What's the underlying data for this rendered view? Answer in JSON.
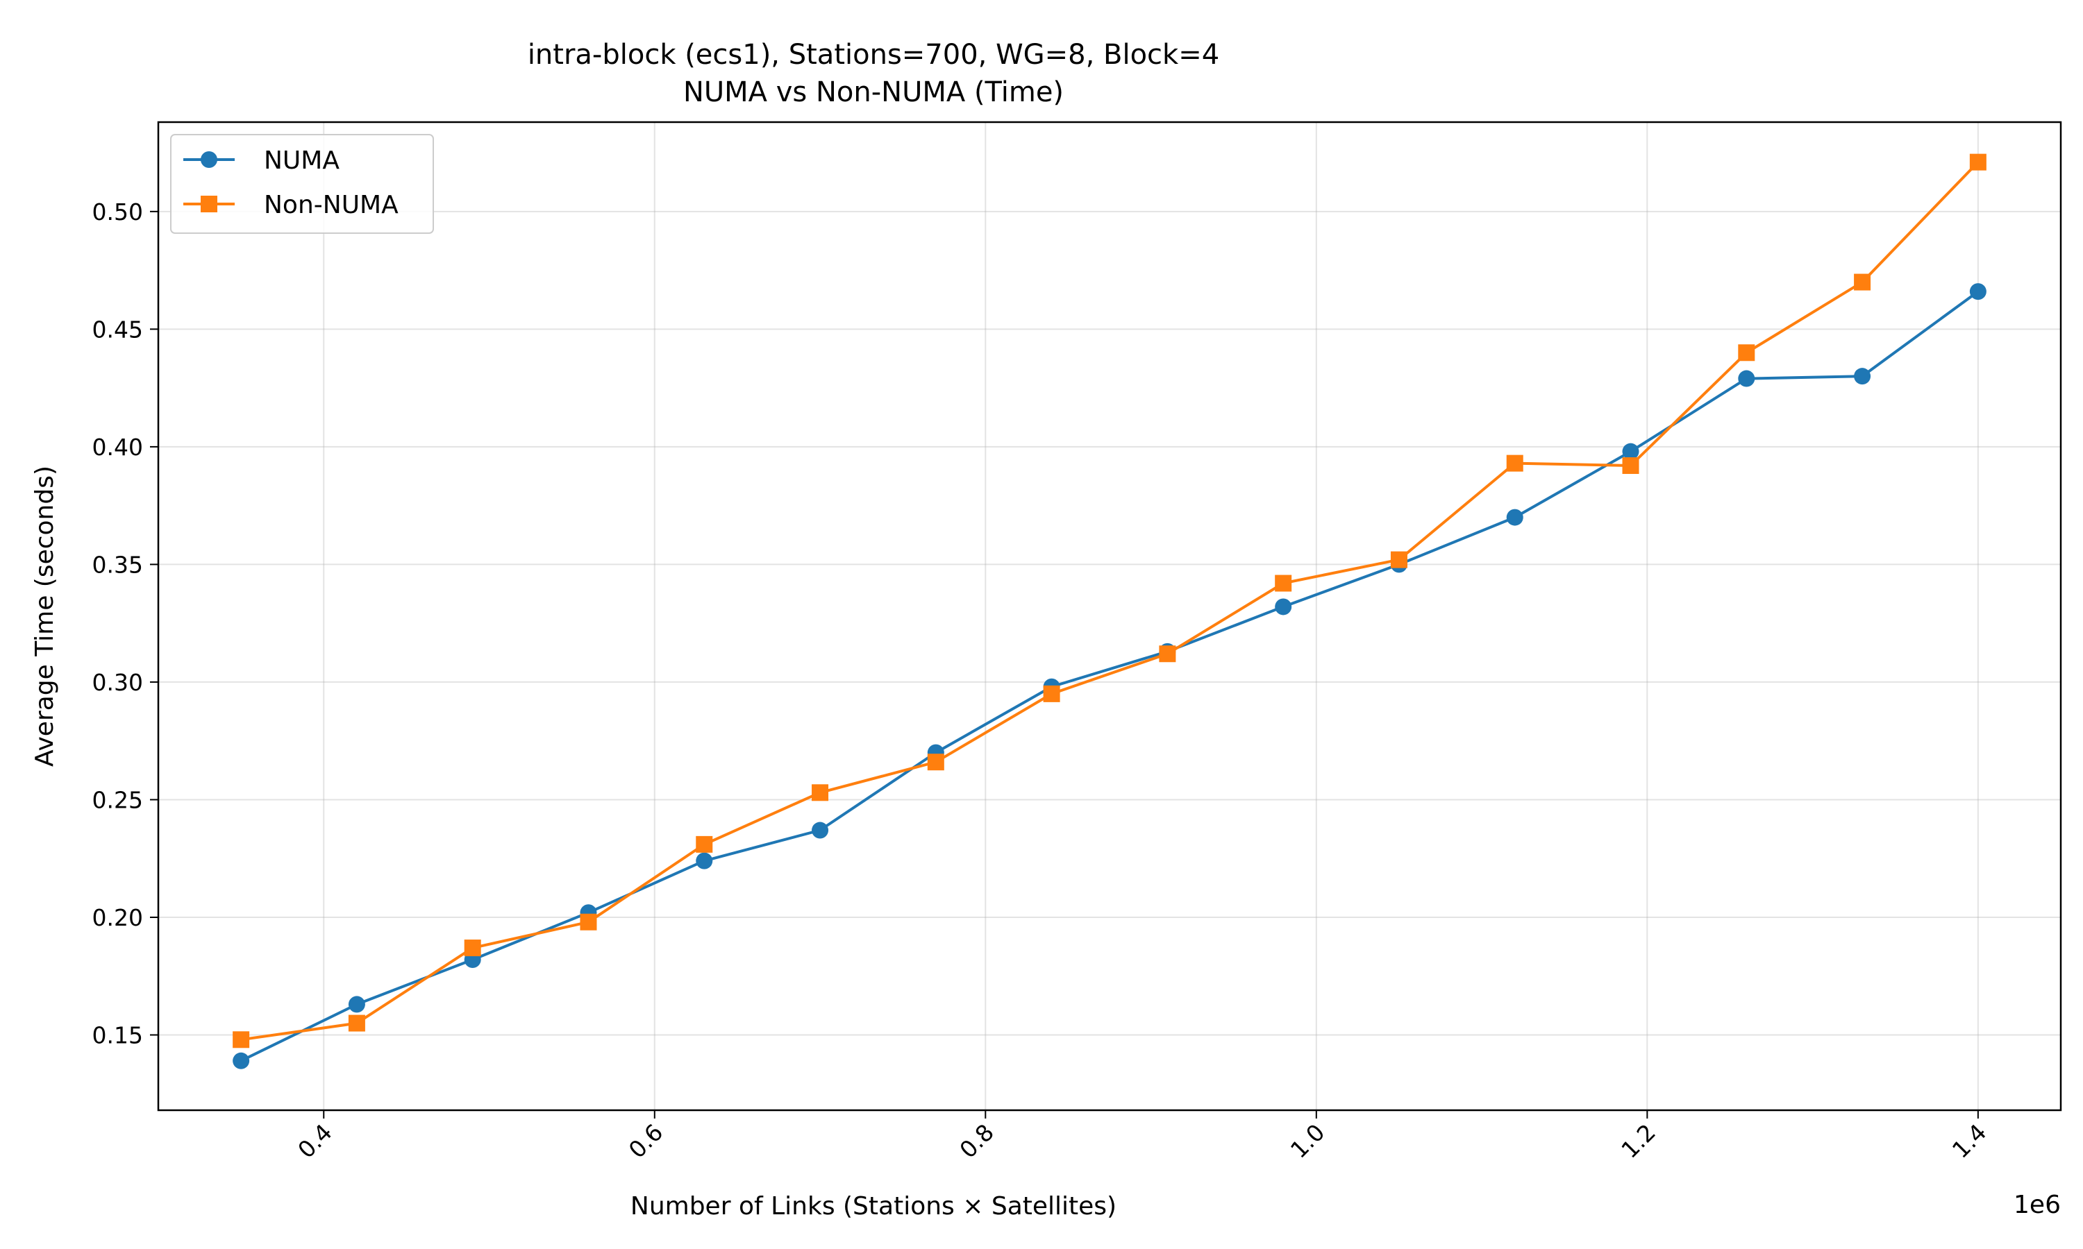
{
  "chart_data": {
    "type": "line",
    "title": "intra-block (ecs1), Stations=700, WG=8, Block=4",
    "subtitle": "NUMA vs Non-NUMA (Time)",
    "xlabel": "Number of Links (Stations × Satellites)",
    "ylabel": "Average Time (seconds)",
    "x_offset_label": "1e6",
    "x_scale": 1000000,
    "xlim": [
      0.3,
      1.45
    ],
    "ylim": [
      0.118,
      0.538
    ],
    "x_ticks": [
      0.4,
      0.6,
      0.8,
      1.0,
      1.2,
      1.4
    ],
    "x_tick_labels": [
      "0.4",
      "0.6",
      "0.8",
      "1.0",
      "1.2",
      "1.4"
    ],
    "y_ticks": [
      0.15,
      0.2,
      0.25,
      0.3,
      0.35,
      0.4,
      0.45,
      0.5
    ],
    "y_tick_labels": [
      "0.15",
      "0.20",
      "0.25",
      "0.30",
      "0.35",
      "0.40",
      "0.45",
      "0.50"
    ],
    "grid": true,
    "legend_position": "top-left",
    "x": [
      0.35,
      0.42,
      0.49,
      0.56,
      0.63,
      0.7,
      0.77,
      0.84,
      0.91,
      0.98,
      1.05,
      1.12,
      1.19,
      1.26,
      1.33,
      1.4
    ],
    "series": [
      {
        "name": "NUMA",
        "color": "#1f77b4",
        "marker": "circle",
        "values": [
          0.139,
          0.163,
          0.182,
          0.202,
          0.224,
          0.237,
          0.27,
          0.298,
          0.313,
          0.332,
          0.35,
          0.37,
          0.398,
          0.429,
          0.43,
          0.466
        ]
      },
      {
        "name": "Non-NUMA",
        "color": "#ff7f0e",
        "marker": "square",
        "values": [
          0.148,
          0.155,
          0.187,
          0.198,
          0.231,
          0.253,
          0.266,
          0.295,
          0.312,
          0.342,
          0.352,
          0.393,
          0.392,
          0.44,
          0.47,
          0.521
        ]
      }
    ]
  }
}
